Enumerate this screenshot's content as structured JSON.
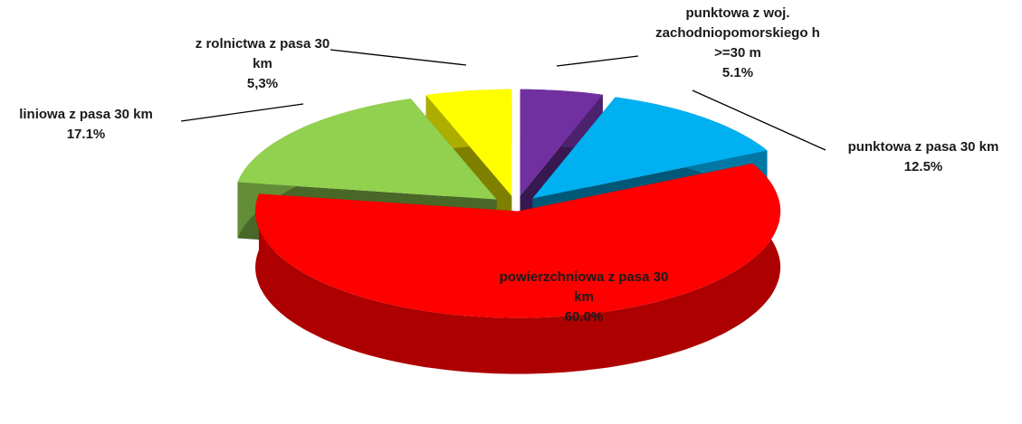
{
  "chart_data": {
    "type": "pie3d",
    "categories": [
      "punktowa z woj. zachodniopomorskiego h >=30 m",
      "punktowa z pasa 30 km",
      "powierzchniowa z pasa 30 km",
      "liniowa z pasa 30 km",
      "z rolnictwa z pasa 30 km"
    ],
    "values": [
      5.1,
      12.5,
      60.0,
      17.1,
      5.3
    ],
    "value_labels": [
      "5.1%",
      "12.5%",
      "60.0%",
      "17.1%",
      "5,3%"
    ],
    "colors": [
      "#7030a0",
      "#00b0f0",
      "#ff0000",
      "#92d050",
      "#ffff00"
    ]
  }
}
